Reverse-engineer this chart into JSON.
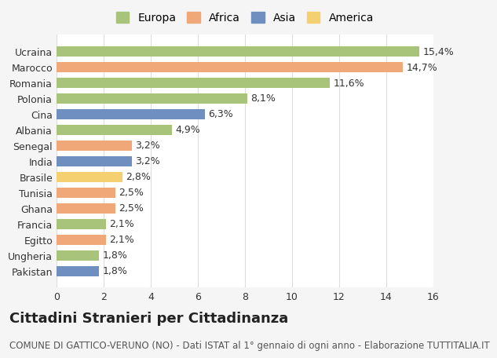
{
  "categories": [
    "Ucraina",
    "Marocco",
    "Romania",
    "Polonia",
    "Cina",
    "Albania",
    "Senegal",
    "India",
    "Brasile",
    "Tunisia",
    "Ghana",
    "Francia",
    "Egitto",
    "Ungheria",
    "Pakistan"
  ],
  "values": [
    15.4,
    14.7,
    11.6,
    8.1,
    6.3,
    4.9,
    3.2,
    3.2,
    2.8,
    2.5,
    2.5,
    2.1,
    2.1,
    1.8,
    1.8
  ],
  "labels": [
    "15,4%",
    "14,7%",
    "11,6%",
    "8,1%",
    "6,3%",
    "4,9%",
    "3,2%",
    "3,2%",
    "2,8%",
    "2,5%",
    "2,5%",
    "2,1%",
    "2,1%",
    "1,8%",
    "1,8%"
  ],
  "continents": [
    "Europa",
    "Africa",
    "Europa",
    "Europa",
    "Asia",
    "Europa",
    "Africa",
    "Asia",
    "America",
    "Africa",
    "Africa",
    "Europa",
    "Africa",
    "Europa",
    "Asia"
  ],
  "continent_colors": {
    "Europa": "#a8c47a",
    "Africa": "#f0a878",
    "Asia": "#6e8fc0",
    "America": "#f5d070"
  },
  "legend_order": [
    "Europa",
    "Africa",
    "Asia",
    "America"
  ],
  "title": "Cittadini Stranieri per Cittadinanza",
  "subtitle": "COMUNE DI GATTICO-VERUNO (NO) - Dati ISTAT al 1° gennaio di ogni anno - Elaborazione TUTTITALIA.IT",
  "xlim": [
    0,
    16
  ],
  "xticks": [
    0,
    2,
    4,
    6,
    8,
    10,
    12,
    14,
    16
  ],
  "background_color": "#f5f5f5",
  "plot_background": "#ffffff",
  "grid_color": "#dddddd",
  "title_fontsize": 13,
  "subtitle_fontsize": 8.5,
  "label_fontsize": 9,
  "tick_fontsize": 9,
  "bar_height": 0.65
}
